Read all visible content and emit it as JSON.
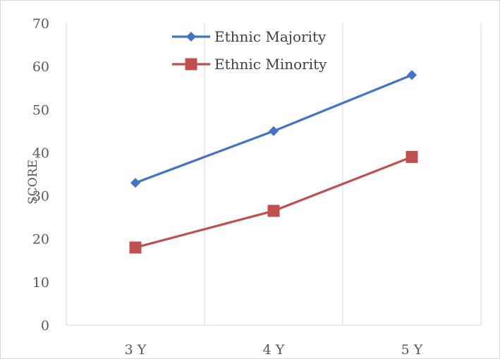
{
  "chart_data": {
    "type": "line",
    "title": "",
    "xlabel": "",
    "ylabel": "SCORE",
    "categories": [
      "3 Y",
      "4 Y",
      "5 Y"
    ],
    "ylim": [
      0,
      70
    ],
    "yticks": [
      0,
      10,
      20,
      30,
      40,
      50,
      60,
      70
    ],
    "grid": "vertical",
    "legend_position": "top-center",
    "series": [
      {
        "name": "Ethnic Majority",
        "values": [
          33,
          45,
          58
        ],
        "color": "#4472C4",
        "marker": "diamond"
      },
      {
        "name": "Ethnic Minority",
        "values": [
          18,
          26.5,
          39
        ],
        "color": "#C0504D",
        "marker": "square"
      }
    ]
  }
}
